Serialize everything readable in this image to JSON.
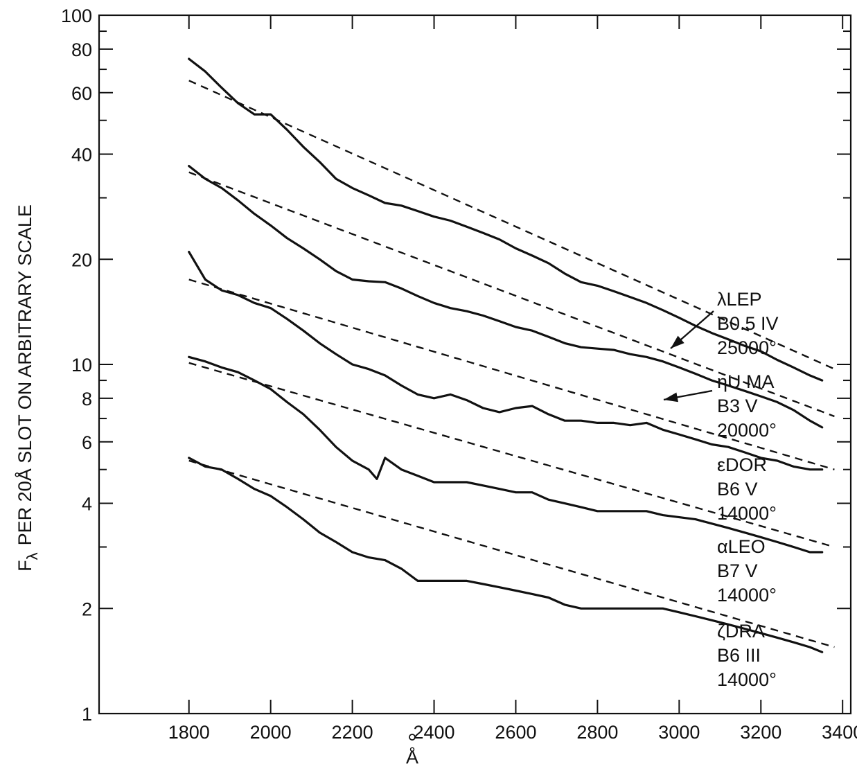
{
  "chart_data": {
    "type": "line",
    "title": "",
    "xlabel": "Å",
    "ylabel": "F λ PER 20Å SLOT ON ARBITRARY SCALE",
    "ylabel_parts": {
      "symbol": "F",
      "subscript": "λ",
      "rest": "PER 20Å SLOT ON ARBITRARY SCALE"
    },
    "xlim": [
      1580,
      3420
    ],
    "ylim": [
      1,
      100
    ],
    "y_scale": "log",
    "grid": false,
    "x_ticks": [
      1800,
      2000,
      2200,
      2400,
      2600,
      2800,
      3000,
      3200,
      3400
    ],
    "y_ticks": [
      1,
      2,
      4,
      6,
      8,
      10,
      20,
      40,
      60,
      80,
      100
    ],
    "y_tick_labels": [
      "1",
      "2",
      "4",
      "6",
      "8",
      "10",
      "20",
      "40",
      "60",
      "80",
      "100"
    ],
    "series": [
      {
        "id": "lambda-lep",
        "label_lines": [
          "λLEP",
          "B0.5 IV",
          "25000°"
        ],
        "arrow": true,
        "observed": {
          "x": [
            1800,
            1840,
            1880,
            1920,
            1960,
            2000,
            2040,
            2080,
            2120,
            2160,
            2200,
            2240,
            2280,
            2320,
            2360,
            2400,
            2440,
            2480,
            2520,
            2560,
            2600,
            2640,
            2680,
            2720,
            2760,
            2800,
            2840,
            2880,
            2920,
            2960,
            3000,
            3040,
            3080,
            3120,
            3160,
            3200,
            3240,
            3280,
            3320,
            3350
          ],
          "y": [
            75,
            69,
            62,
            56,
            52,
            52,
            47,
            42,
            38,
            34,
            32,
            30.5,
            29,
            28.5,
            27.5,
            26.5,
            25.8,
            24.8,
            23.8,
            22.8,
            21.5,
            20.5,
            19.5,
            18.2,
            17.2,
            16.8,
            16.2,
            15.6,
            15,
            14.3,
            13.6,
            12.9,
            12.3,
            11.8,
            11.3,
            10.9,
            10.3,
            9.8,
            9.3,
            9.0
          ]
        },
        "fit": {
          "x": [
            1800,
            3380
          ],
          "y": [
            65,
            9.7
          ]
        }
      },
      {
        "id": "eta-uma",
        "label_lines": [
          "ηU MA",
          "B3 V",
          "20000°"
        ],
        "arrow": true,
        "observed": {
          "x": [
            1800,
            1840,
            1880,
            1920,
            1960,
            2000,
            2040,
            2080,
            2120,
            2160,
            2200,
            2240,
            2280,
            2320,
            2360,
            2400,
            2440,
            2480,
            2520,
            2560,
            2600,
            2640,
            2680,
            2720,
            2760,
            2800,
            2840,
            2880,
            2920,
            2960,
            3000,
            3040,
            3080,
            3120,
            3160,
            3200,
            3240,
            3280,
            3320,
            3350
          ],
          "y": [
            37,
            34,
            32,
            29.5,
            27,
            25,
            23,
            21.5,
            20,
            18.5,
            17.5,
            17.3,
            17.2,
            16.5,
            15.7,
            15,
            14.5,
            14.2,
            13.8,
            13.3,
            12.8,
            12.5,
            12,
            11.5,
            11.2,
            11.1,
            11,
            10.7,
            10.5,
            10.2,
            9.8,
            9.4,
            9.0,
            8.7,
            8.4,
            8.1,
            7.8,
            7.4,
            6.9,
            6.6
          ]
        },
        "fit": {
          "x": [
            1800,
            3380
          ],
          "y": [
            35.5,
            7.1
          ]
        }
      },
      {
        "id": "epsilon-dor",
        "label_lines": [
          "εDOR",
          "B6 V",
          "14000°"
        ],
        "arrow": false,
        "observed": {
          "x": [
            1800,
            1840,
            1880,
            1920,
            1960,
            2000,
            2040,
            2080,
            2120,
            2160,
            2200,
            2240,
            2280,
            2320,
            2360,
            2400,
            2440,
            2480,
            2520,
            2560,
            2600,
            2640,
            2680,
            2720,
            2760,
            2800,
            2840,
            2880,
            2920,
            2960,
            3000,
            3040,
            3080,
            3120,
            3160,
            3200,
            3240,
            3280,
            3320,
            3350
          ],
          "y": [
            21,
            17.5,
            16.3,
            15.8,
            15,
            14.5,
            13.5,
            12.5,
            11.5,
            10.7,
            10,
            9.7,
            9.3,
            8.7,
            8.2,
            8.0,
            8.2,
            7.9,
            7.5,
            7.3,
            7.5,
            7.6,
            7.2,
            6.9,
            6.9,
            6.8,
            6.8,
            6.7,
            6.8,
            6.5,
            6.3,
            6.1,
            5.9,
            5.8,
            5.6,
            5.4,
            5.3,
            5.1,
            5.0,
            5.0
          ]
        },
        "fit": {
          "x": [
            1800,
            3380
          ],
          "y": [
            17.5,
            5.0
          ]
        }
      },
      {
        "id": "alpha-leo",
        "label_lines": [
          "αLEO",
          "B7 V",
          "14000°"
        ],
        "arrow": false,
        "observed": {
          "x": [
            1800,
            1840,
            1880,
            1920,
            1960,
            2000,
            2040,
            2080,
            2120,
            2160,
            2200,
            2240,
            2260,
            2280,
            2320,
            2360,
            2400,
            2440,
            2480,
            2520,
            2560,
            2600,
            2640,
            2680,
            2720,
            2760,
            2800,
            2840,
            2880,
            2920,
            2960,
            3000,
            3040,
            3080,
            3120,
            3160,
            3200,
            3240,
            3280,
            3320,
            3350
          ],
          "y": [
            10.5,
            10.2,
            9.8,
            9.5,
            9.0,
            8.5,
            7.8,
            7.2,
            6.5,
            5.8,
            5.3,
            5.0,
            4.7,
            5.4,
            5.0,
            4.8,
            4.6,
            4.6,
            4.6,
            4.5,
            4.4,
            4.3,
            4.3,
            4.1,
            4.0,
            3.9,
            3.8,
            3.8,
            3.8,
            3.8,
            3.7,
            3.65,
            3.6,
            3.5,
            3.4,
            3.3,
            3.2,
            3.1,
            3.0,
            2.9,
            2.9
          ]
        },
        "fit": {
          "x": [
            1800,
            3380
          ],
          "y": [
            10.1,
            3.0
          ]
        }
      },
      {
        "id": "zeta-dra",
        "label_lines": [
          "ζDRA",
          "B6 III",
          "14000°"
        ],
        "arrow": false,
        "observed": {
          "x": [
            1800,
            1840,
            1880,
            1920,
            1960,
            2000,
            2040,
            2080,
            2120,
            2160,
            2200,
            2240,
            2280,
            2320,
            2360,
            2400,
            2440,
            2480,
            2520,
            2560,
            2600,
            2640,
            2680,
            2720,
            2760,
            2800,
            2840,
            2880,
            2920,
            2960,
            3000,
            3040,
            3080,
            3120,
            3160,
            3200,
            3240,
            3280,
            3320,
            3350
          ],
          "y": [
            5.4,
            5.1,
            5.0,
            4.7,
            4.4,
            4.2,
            3.9,
            3.6,
            3.3,
            3.1,
            2.9,
            2.8,
            2.75,
            2.6,
            2.4,
            2.4,
            2.4,
            2.4,
            2.35,
            2.3,
            2.25,
            2.2,
            2.15,
            2.05,
            2.0,
            2.0,
            2.0,
            2.0,
            2.0,
            2.0,
            1.95,
            1.9,
            1.85,
            1.8,
            1.75,
            1.7,
            1.65,
            1.6,
            1.55,
            1.5
          ]
        },
        "fit": {
          "x": [
            1800,
            3380
          ],
          "y": [
            5.3,
            1.55
          ]
        }
      }
    ]
  }
}
